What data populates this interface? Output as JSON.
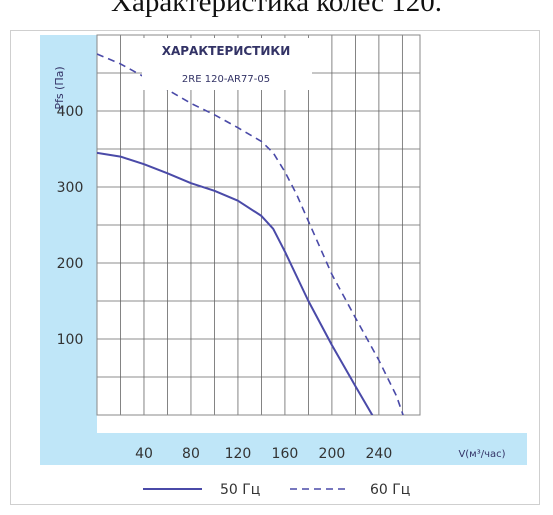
{
  "page_title": "Характеристика колес 120.",
  "colors": {
    "axis_band": "#bfe6f8",
    "line": "#4a4aa8",
    "grid": "#666666"
  },
  "chart_data": {
    "type": "line",
    "title": "ХАРАКТЕРИСТИКИ",
    "subtitle": "2RE 120-AR77-05",
    "ylabel": "Pfs (Па)",
    "xlabel": "V(м³/час)",
    "xlim": [
      0,
      275
    ],
    "ylim": [
      0,
      500
    ],
    "x_ticks": [
      40,
      80,
      120,
      160,
      200,
      240
    ],
    "y_ticks": [
      100,
      200,
      300,
      400
    ],
    "grid": true,
    "legend_position": "bottom",
    "series": [
      {
        "name": "50 Гц",
        "style": "solid",
        "x": [
          0,
          20,
          40,
          60,
          80,
          100,
          120,
          140,
          150,
          160,
          180,
          200,
          220,
          240,
          255
        ],
        "y": [
          345,
          340,
          330,
          318,
          305,
          295,
          282,
          262,
          245,
          215,
          150,
          92,
          38,
          -15,
          -60
        ]
      },
      {
        "name": "60 Гц",
        "style": "dashed",
        "x": [
          0,
          20,
          40,
          60,
          80,
          100,
          120,
          140,
          150,
          160,
          170,
          180,
          200,
          220,
          240,
          255,
          265
        ],
        "y": [
          475,
          462,
          445,
          428,
          410,
          395,
          378,
          360,
          345,
          320,
          290,
          255,
          185,
          128,
          72,
          25,
          -20
        ]
      }
    ]
  }
}
